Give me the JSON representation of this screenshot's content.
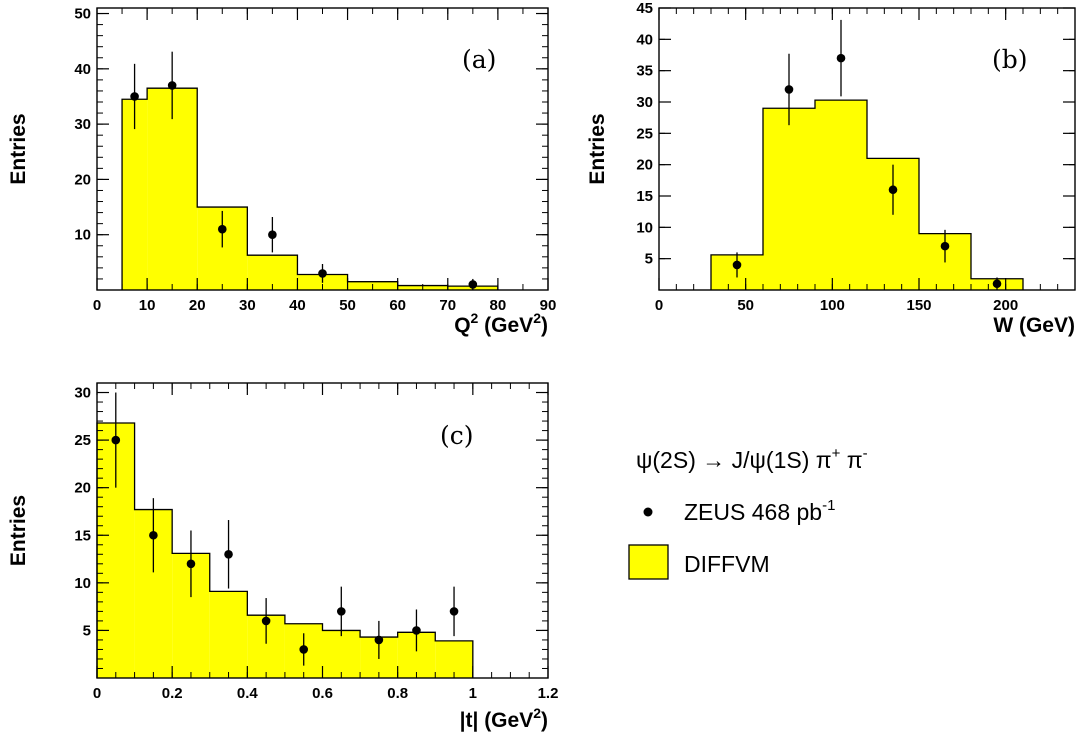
{
  "colors": {
    "mc_fill": "#ffff00",
    "line": "#000000",
    "background": "#ffffff"
  },
  "legend": {
    "reaction": "ψ(2S) → J/ψ(1S) π⁺ π⁻",
    "reaction_parts": {
      "main": "ψ(2S) → J/ψ(1S) π",
      "sup1": "+",
      "mid": " π",
      "sup2": "-"
    },
    "data_label": "ZEUS 468 pb-1",
    "data_label_parts": {
      "main": "ZEUS 468 pb",
      "sup": "-1"
    },
    "mc_label": "DIFFVM"
  },
  "chart_data": [
    {
      "type": "bar",
      "panel": "(a)",
      "xlabel": "Q2 (GeV2)",
      "xlabel_parts": {
        "a": "Q",
        "a_sup": "2",
        "b": " (GeV",
        "b_sup": "2",
        "c": ")"
      },
      "ylabel": "Entries",
      "xlim": [
        0,
        90
      ],
      "ylim": [
        0,
        51
      ],
      "xticks": [
        "0",
        "10",
        "20",
        "30",
        "40",
        "50",
        "60",
        "70",
        "80",
        "90"
      ],
      "xtick_values": [
        0,
        10,
        20,
        30,
        40,
        50,
        60,
        70,
        80,
        90
      ],
      "yticks": [
        "10",
        "20",
        "30",
        "40",
        "50"
      ],
      "ytick_values": [
        10,
        20,
        30,
        40,
        50
      ],
      "xminor": 5,
      "yminor": 2,
      "mc_histogram": {
        "name": "DIFFVM",
        "bin_edges": [
          5,
          10,
          20,
          30,
          40,
          50,
          60,
          70,
          80
        ],
        "values": [
          34.5,
          36.5,
          15,
          6.3,
          2.8,
          1.5,
          0.8,
          0.7
        ]
      },
      "data_points": {
        "name": "ZEUS 468 pb-1",
        "x": [
          7.5,
          15,
          25,
          35,
          45,
          75
        ],
        "y": [
          35,
          37,
          11,
          10,
          3,
          1
        ],
        "err": [
          5.9,
          6.1,
          3.3,
          3.2,
          1.7,
          1.0
        ]
      }
    },
    {
      "type": "bar",
      "panel": "(b)",
      "xlabel": "W (GeV)",
      "xlabel_parts": {
        "a": "W (GeV)",
        "a_sup": "",
        "b": "",
        "b_sup": "",
        "c": ""
      },
      "ylabel": "Entries",
      "xlim": [
        0,
        240
      ],
      "ylim": [
        0,
        45
      ],
      "xticks": [
        "0",
        "50",
        "100",
        "150",
        "200"
      ],
      "xtick_values": [
        0,
        50,
        100,
        150,
        200
      ],
      "yticks": [
        "5",
        "10",
        "15",
        "20",
        "25",
        "30",
        "35",
        "40",
        "45"
      ],
      "ytick_values": [
        5,
        10,
        15,
        20,
        25,
        30,
        35,
        40,
        45
      ],
      "xminor": 10,
      "yminor": 5,
      "mc_histogram": {
        "name": "DIFFVM",
        "bin_edges": [
          30,
          60,
          90,
          120,
          150,
          180,
          210
        ],
        "values": [
          5.6,
          29,
          30.3,
          21,
          9,
          1.8
        ]
      },
      "data_points": {
        "name": "ZEUS 468 pb-1",
        "x": [
          45,
          75,
          105,
          135,
          165,
          195
        ],
        "y": [
          4,
          32,
          37,
          16,
          7,
          1
        ],
        "err": [
          2.0,
          5.7,
          6.1,
          4.0,
          2.6,
          1.0
        ]
      }
    },
    {
      "type": "bar",
      "panel": "(c)",
      "xlabel": "|t| (GeV2)",
      "xlabel_parts": {
        "a": "|t| (GeV",
        "a_sup": "2",
        "b": ")",
        "b_sup": "",
        "c": ""
      },
      "ylabel": "Entries",
      "xlim": [
        0,
        1.2
      ],
      "ylim": [
        0,
        31
      ],
      "xticks": [
        "0",
        "0.2",
        "0.4",
        "0.6",
        "0.8",
        "1",
        "1.2"
      ],
      "xtick_values": [
        0,
        0.2,
        0.4,
        0.6,
        0.8,
        1.0,
        1.2
      ],
      "yticks": [
        "5",
        "10",
        "15",
        "20",
        "25",
        "30"
      ],
      "ytick_values": [
        5,
        10,
        15,
        20,
        25,
        30
      ],
      "xminor": 0.05,
      "yminor": 1,
      "mc_histogram": {
        "name": "DIFFVM",
        "bin_edges": [
          0,
          0.1,
          0.2,
          0.3,
          0.4,
          0.5,
          0.6,
          0.7,
          0.8,
          0.9,
          1.0
        ],
        "values": [
          26.8,
          17.7,
          13.1,
          9.1,
          6.6,
          5.7,
          5.0,
          4.3,
          4.8,
          3.9
        ]
      },
      "data_points": {
        "name": "ZEUS 468 pb-1",
        "x": [
          0.05,
          0.15,
          0.25,
          0.35,
          0.45,
          0.55,
          0.65,
          0.75,
          0.85,
          0.95
        ],
        "y": [
          25,
          15,
          12,
          13,
          6,
          3,
          7,
          4,
          5,
          7
        ],
        "err": [
          5.0,
          3.9,
          3.5,
          3.6,
          2.4,
          1.7,
          2.6,
          2.0,
          2.2,
          2.6
        ]
      }
    }
  ]
}
